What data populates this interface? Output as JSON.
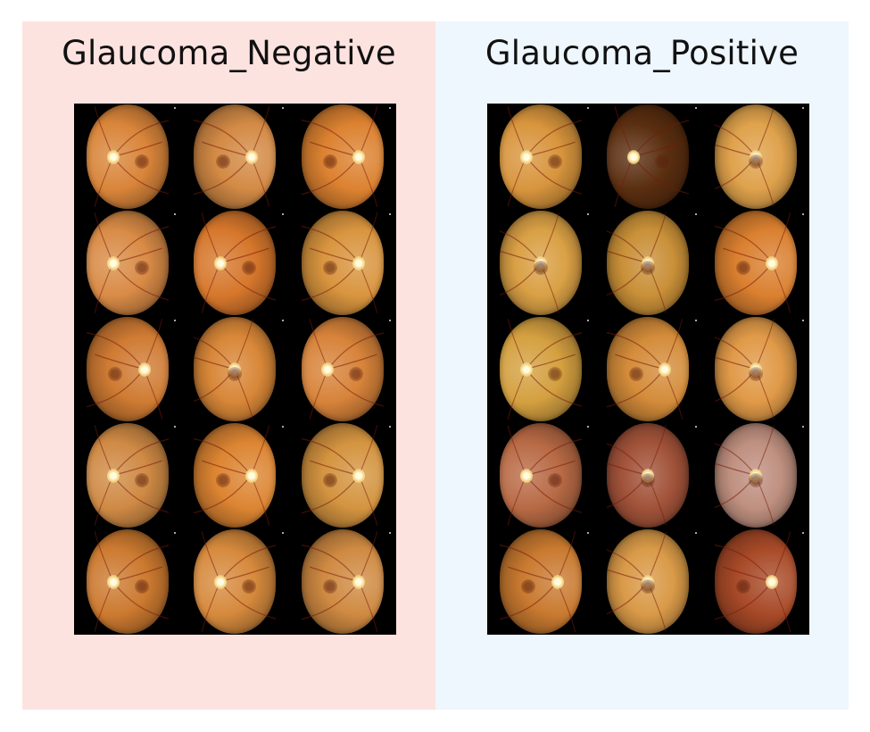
{
  "panels": [
    {
      "title": "Glaucoma_Negative",
      "background": "#fde3e0",
      "images": [
        {
          "disc": "left",
          "tone": "#d9853a"
        },
        {
          "disc": "right",
          "tone": "#d38a45"
        },
        {
          "disc": "right",
          "tone": "#dc8231"
        },
        {
          "disc": "left",
          "tone": "#d98b46"
        },
        {
          "disc": "left",
          "tone": "#d6772c"
        },
        {
          "disc": "right",
          "tone": "#d9953f"
        },
        {
          "disc": "right",
          "tone": "#cf7b33"
        },
        {
          "disc": "center",
          "tone": "#d88738"
        },
        {
          "disc": "left",
          "tone": "#d7833a"
        },
        {
          "disc": "left",
          "tone": "#cf8a45"
        },
        {
          "disc": "right",
          "tone": "#dc8532"
        },
        {
          "disc": "right",
          "tone": "#d49440"
        },
        {
          "disc": "left",
          "tone": "#cc7a30"
        },
        {
          "disc": "left",
          "tone": "#d68a3d"
        },
        {
          "disc": "right",
          "tone": "#cf8a42"
        }
      ]
    },
    {
      "title": "Glaucoma_Positive",
      "background": "#eef6fe",
      "images": [
        {
          "disc": "left",
          "tone": "#d8953d"
        },
        {
          "disc": "left",
          "tone": "#5a2e10"
        },
        {
          "disc": "center",
          "tone": "#dfa24c"
        },
        {
          "disc": "center",
          "tone": "#d9a045"
        },
        {
          "disc": "center",
          "tone": "#c99038"
        },
        {
          "disc": "right",
          "tone": "#da8030"
        },
        {
          "disc": "left",
          "tone": "#d4a040"
        },
        {
          "disc": "right",
          "tone": "#d48c3a"
        },
        {
          "disc": "center",
          "tone": "#e09a48"
        },
        {
          "disc": "left",
          "tone": "#b86a45"
        },
        {
          "disc": "center",
          "tone": "#a2533a"
        },
        {
          "disc": "center",
          "tone": "#bf9080"
        },
        {
          "disc": "right",
          "tone": "#c97a30"
        },
        {
          "disc": "center",
          "tone": "#d99a48"
        },
        {
          "disc": "right",
          "tone": "#a84a28"
        }
      ]
    }
  ]
}
